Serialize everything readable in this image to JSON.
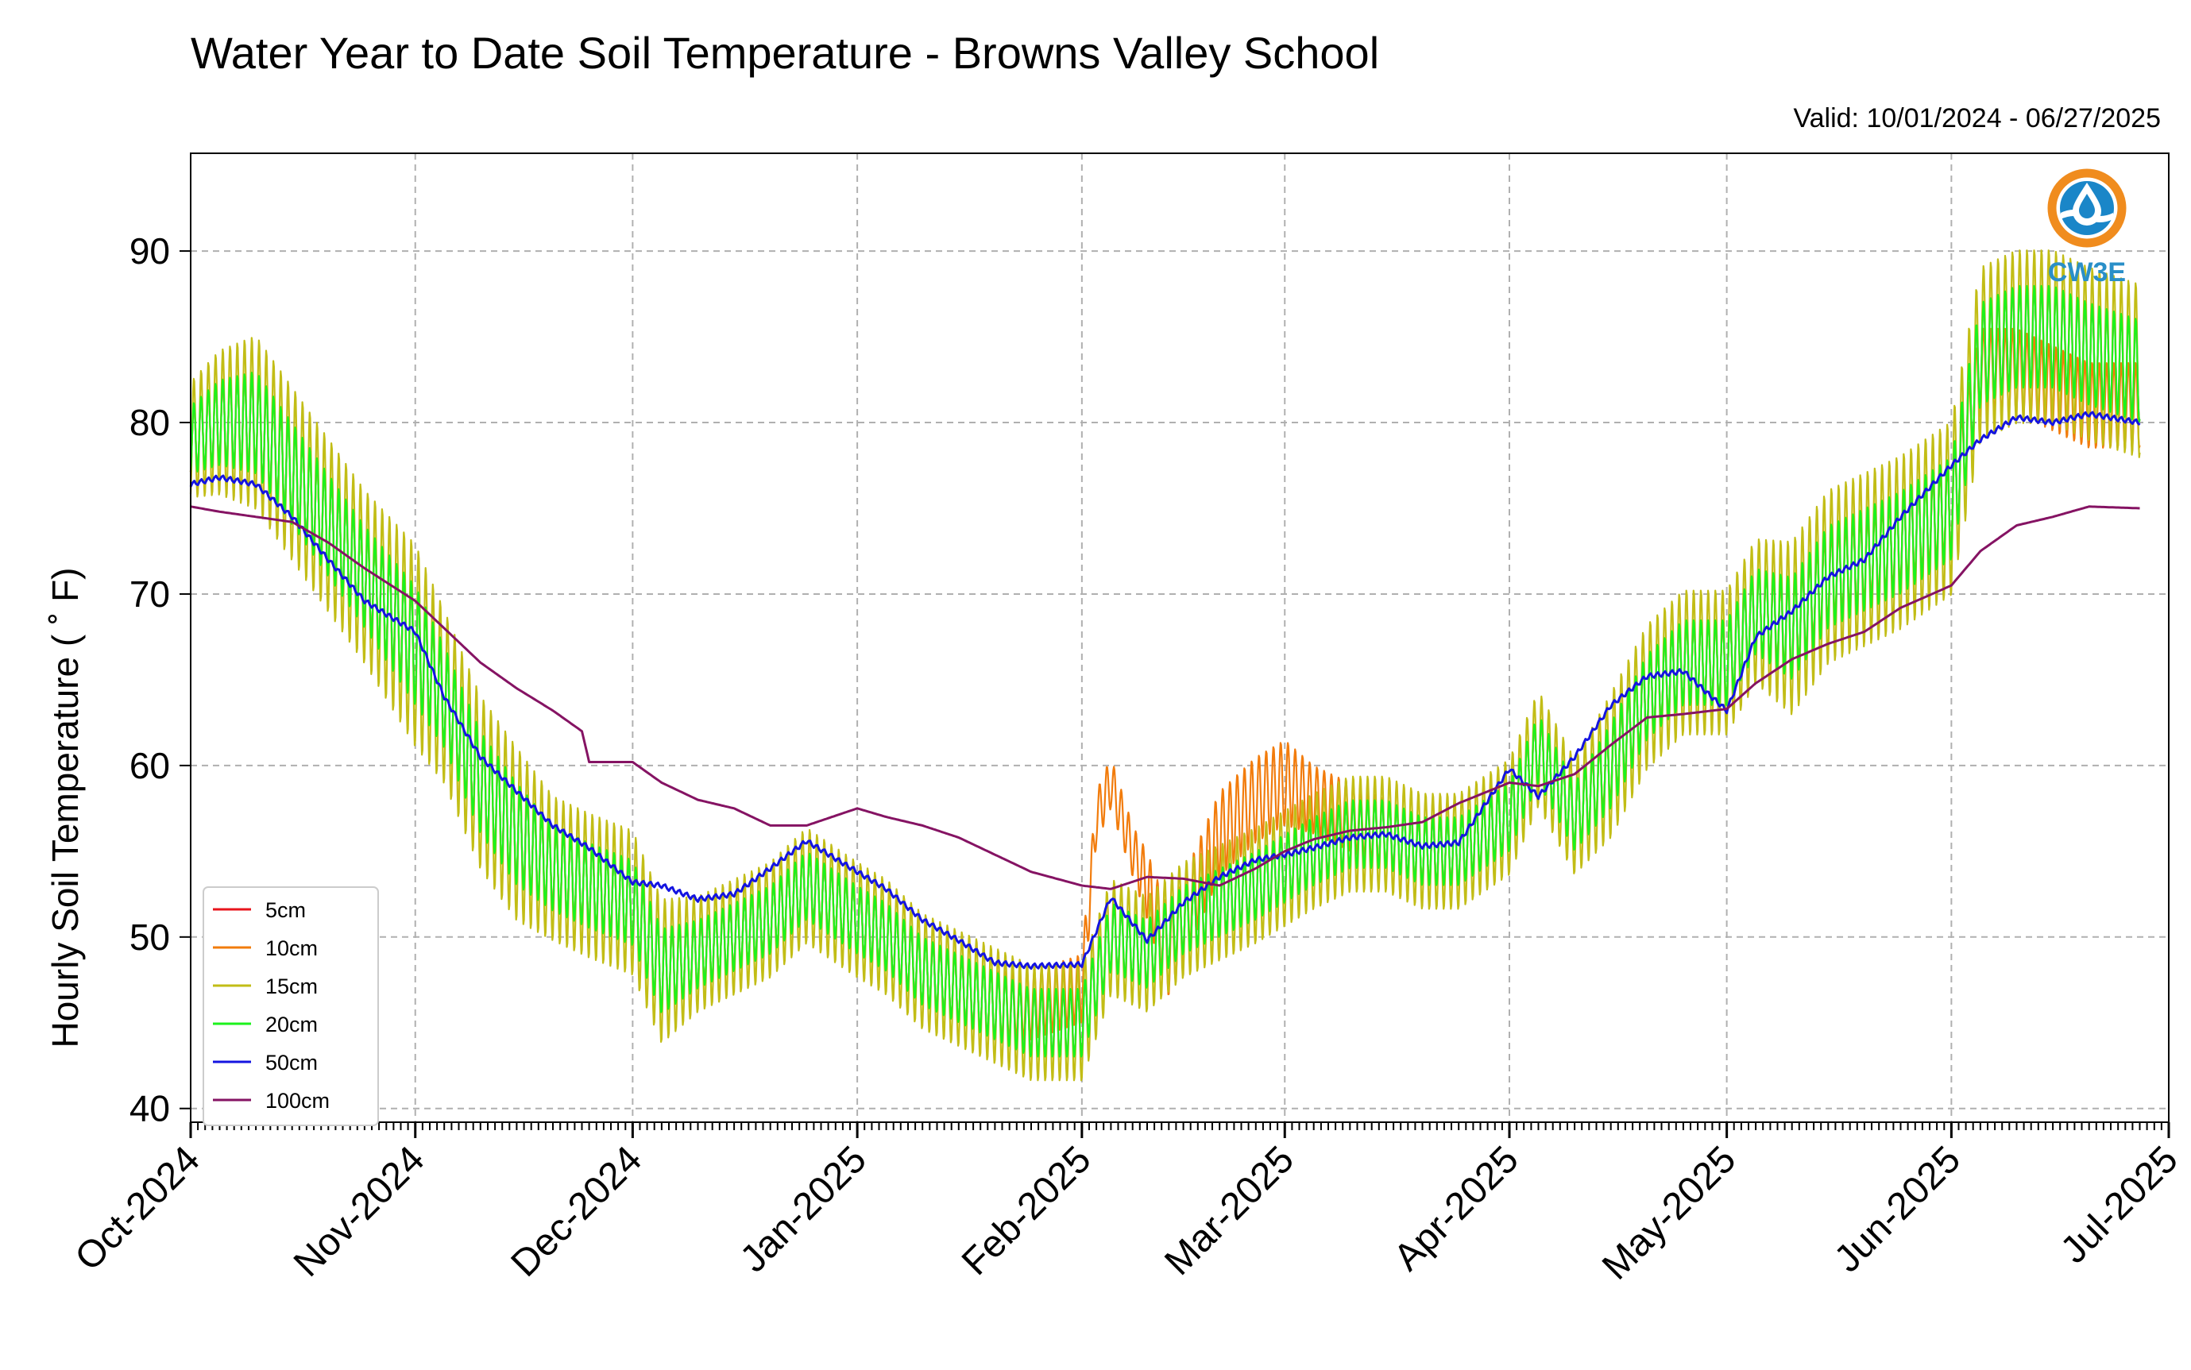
{
  "chart_data": {
    "type": "line",
    "title": "Water Year to Date Soil Temperature - Browns Valley School",
    "subtitle": "Valid: 10/01/2024 - 06/27/2025",
    "xlabel": "",
    "ylabel": "Hourly Soil Temperature ( ˚ F)",
    "xlim": [
      "2024-10-01",
      "2025-07-01"
    ],
    "ylim": [
      39.2,
      95.7
    ],
    "yticks": [
      40,
      50,
      60,
      70,
      80,
      90
    ],
    "xticks": [
      {
        "date": "2024-10-01",
        "label": "Oct-2024"
      },
      {
        "date": "2024-11-01",
        "label": "Nov-2024"
      },
      {
        "date": "2024-12-01",
        "label": "Dec-2024"
      },
      {
        "date": "2025-01-01",
        "label": "Jan-2025"
      },
      {
        "date": "2025-02-01",
        "label": "Feb-2025"
      },
      {
        "date": "2025-03-01",
        "label": "Mar-2025"
      },
      {
        "date": "2025-04-01",
        "label": "Apr-2025"
      },
      {
        "date": "2025-05-01",
        "label": "May-2025"
      },
      {
        "date": "2025-06-01",
        "label": "Jun-2025"
      },
      {
        "date": "2025-07-01",
        "label": "Jul-2025"
      }
    ],
    "grid": true,
    "legend_position": "lower-left",
    "logo_text": "CW3E",
    "series": [
      {
        "name": "5cm",
        "color": "#e8141c",
        "amp_scale": 1.0,
        "x": [
          "2024-10-01",
          "2024-10-05",
          "2024-10-10",
          "2024-10-15",
          "2024-10-20",
          "2024-10-25",
          "2024-11-01",
          "2024-11-05",
          "2024-11-10",
          "2024-11-15",
          "2024-11-20",
          "2024-11-25",
          "2024-12-01",
          "2024-12-05",
          "2024-12-10",
          "2024-12-15",
          "2024-12-20",
          "2024-12-25",
          "2025-01-01",
          "2025-01-05",
          "2025-01-10",
          "2025-01-15",
          "2025-01-20",
          "2025-01-25",
          "2025-02-01",
          "2025-02-05",
          "2025-02-10",
          "2025-02-15",
          "2025-02-20",
          "2025-02-25",
          "2025-03-01",
          "2025-03-05",
          "2025-03-10",
          "2025-03-15",
          "2025-03-20",
          "2025-03-25",
          "2025-04-01",
          "2025-04-05",
          "2025-04-10",
          "2025-04-15",
          "2025-04-20",
          "2025-04-25",
          "2025-05-01",
          "2025-05-05",
          "2025-05-10",
          "2025-05-15",
          "2025-05-20",
          "2025-05-25",
          "2025-06-01",
          "2025-06-05",
          "2025-06-10",
          "2025-06-15",
          "2025-06-20",
          "2025-06-27"
        ],
        "y": [
          79,
          80,
          80,
          77,
          74,
          71,
          67,
          64,
          59,
          56,
          54,
          53,
          52,
          48,
          49,
          50,
          51,
          53,
          51,
          50,
          48,
          47,
          46,
          45,
          45,
          50,
          49,
          51,
          52,
          53,
          54,
          55,
          56,
          56,
          55,
          55,
          57,
          61,
          57,
          60,
          64,
          66,
          66,
          69,
          68,
          71,
          72,
          73,
          75,
          84,
          85,
          85,
          84,
          83
        ],
        "amp": [
          2,
          2.5,
          3,
          3,
          3,
          3,
          3.5,
          3,
          3,
          3,
          2.5,
          2.5,
          2.5,
          2.5,
          2,
          2,
          2,
          2,
          2,
          2,
          2,
          2,
          2,
          2,
          2,
          2,
          2,
          2,
          2,
          2,
          2,
          2,
          2,
          2,
          2,
          2,
          2,
          2,
          2,
          2.5,
          2.5,
          2.5,
          2.5,
          2.5,
          3,
          3,
          3,
          3,
          3,
          3,
          3,
          3,
          3,
          3
        ]
      },
      {
        "name": "10cm",
        "color": "#f27c0c",
        "amp_scale": 1.0,
        "x": [
          "2024-10-01",
          "2024-10-05",
          "2024-10-10",
          "2024-10-15",
          "2024-10-20",
          "2024-10-25",
          "2024-11-01",
          "2024-11-05",
          "2024-11-10",
          "2024-11-15",
          "2024-11-20",
          "2024-11-25",
          "2024-12-01",
          "2024-12-05",
          "2024-12-10",
          "2024-12-15",
          "2024-12-20",
          "2024-12-25",
          "2025-01-01",
          "2025-01-05",
          "2025-01-10",
          "2025-01-15",
          "2025-01-20",
          "2025-01-25",
          "2025-02-01",
          "2025-02-03",
          "2025-02-05",
          "2025-02-08",
          "2025-02-10",
          "2025-02-13",
          "2025-02-15",
          "2025-02-20",
          "2025-02-25",
          "2025-03-01",
          "2025-03-05",
          "2025-03-10",
          "2025-03-15",
          "2025-03-20",
          "2025-03-25",
          "2025-04-01",
          "2025-04-05",
          "2025-04-10",
          "2025-04-15",
          "2025-04-20",
          "2025-04-25",
          "2025-05-01",
          "2025-05-05",
          "2025-05-10",
          "2025-05-15",
          "2025-05-20",
          "2025-05-25",
          "2025-06-01",
          "2025-06-05",
          "2025-06-10",
          "2025-06-15",
          "2025-06-20",
          "2025-06-27"
        ],
        "y": [
          79,
          80,
          80,
          77,
          74,
          71,
          67,
          64,
          59,
          56,
          54,
          53,
          52,
          48,
          49,
          50,
          51,
          53,
          51,
          50,
          48,
          47,
          46,
          46,
          47,
          57,
          59,
          55,
          53,
          49,
          51,
          56,
          58,
          59,
          58,
          57,
          56,
          55,
          55,
          57,
          61,
          57,
          60,
          64,
          66,
          66,
          69,
          68,
          71,
          72,
          73,
          75,
          83,
          83,
          82,
          81,
          81
        ],
        "amp": [
          2,
          2.5,
          3,
          3,
          3,
          3,
          3.5,
          3,
          3,
          3,
          2.5,
          2.5,
          2.5,
          2.5,
          2,
          2,
          2,
          2,
          2,
          2,
          2,
          2,
          2,
          2,
          2,
          1.5,
          1.5,
          1.5,
          2,
          2.5,
          2.5,
          2.5,
          2.5,
          2.5,
          2,
          2,
          2,
          2,
          2,
          2,
          2,
          2,
          2,
          2.5,
          2.5,
          2.5,
          2.5,
          2.5,
          2.5,
          2.5,
          2.5,
          2.5,
          2.5,
          2.5,
          2.5,
          2.5,
          2.5
        ]
      },
      {
        "name": "15cm",
        "color": "#c2bd16",
        "amp_scale": 1.7,
        "x": [
          "2024-10-01",
          "2024-10-05",
          "2024-10-10",
          "2024-10-15",
          "2024-10-20",
          "2024-10-25",
          "2024-11-01",
          "2024-11-05",
          "2024-11-10",
          "2024-11-15",
          "2024-11-20",
          "2024-11-25",
          "2024-12-01",
          "2024-12-05",
          "2024-12-10",
          "2024-12-15",
          "2024-12-20",
          "2024-12-25",
          "2025-01-01",
          "2025-01-05",
          "2025-01-10",
          "2025-01-15",
          "2025-01-20",
          "2025-01-25",
          "2025-02-01",
          "2025-02-05",
          "2025-02-10",
          "2025-02-15",
          "2025-02-20",
          "2025-02-25",
          "2025-03-01",
          "2025-03-05",
          "2025-03-10",
          "2025-03-15",
          "2025-03-20",
          "2025-03-25",
          "2025-04-01",
          "2025-04-05",
          "2025-04-10",
          "2025-04-15",
          "2025-04-20",
          "2025-04-25",
          "2025-05-01",
          "2025-05-05",
          "2025-05-10",
          "2025-05-15",
          "2025-05-20",
          "2025-05-25",
          "2025-06-01",
          "2025-06-05",
          "2025-06-10",
          "2025-06-15",
          "2025-06-20",
          "2025-06-27"
        ],
        "y": [
          79,
          80,
          80,
          77,
          74,
          71,
          67,
          64,
          59,
          56,
          54,
          53,
          52,
          48,
          49,
          50,
          51,
          53,
          51,
          50,
          48,
          47,
          46,
          45,
          45,
          50,
          49,
          51,
          52,
          53,
          54,
          55,
          56,
          56,
          55,
          55,
          57,
          61,
          57,
          60,
          64,
          66,
          66,
          69,
          68,
          71,
          72,
          73,
          75,
          84,
          85,
          85,
          84,
          83
        ],
        "amp": [
          2,
          2.5,
          3,
          3,
          3,
          3,
          3.5,
          3,
          3,
          3,
          2.5,
          2.5,
          2.5,
          2.5,
          2,
          2,
          2,
          2,
          2,
          2,
          2,
          2,
          2,
          2,
          2,
          2,
          2,
          2,
          2,
          2,
          2,
          2,
          2,
          2,
          2,
          2,
          2,
          2,
          2,
          2.5,
          2.5,
          2.5,
          2.5,
          2.5,
          3,
          3,
          3,
          3,
          3,
          3,
          3,
          3,
          3,
          3
        ]
      },
      {
        "name": "20cm",
        "color": "#1cf21c",
        "amp_scale": 1.0,
        "x": [
          "2024-10-01",
          "2024-10-05",
          "2024-10-10",
          "2024-10-15",
          "2024-10-20",
          "2024-10-25",
          "2024-11-01",
          "2024-11-05",
          "2024-11-10",
          "2024-11-15",
          "2024-11-20",
          "2024-11-25",
          "2024-12-01",
          "2024-12-05",
          "2024-12-10",
          "2024-12-15",
          "2024-12-20",
          "2024-12-25",
          "2025-01-01",
          "2025-01-05",
          "2025-01-10",
          "2025-01-15",
          "2025-01-20",
          "2025-01-25",
          "2025-02-01",
          "2025-02-05",
          "2025-02-10",
          "2025-02-15",
          "2025-02-20",
          "2025-02-25",
          "2025-03-01",
          "2025-03-05",
          "2025-03-10",
          "2025-03-15",
          "2025-03-20",
          "2025-03-25",
          "2025-04-01",
          "2025-04-05",
          "2025-04-10",
          "2025-04-15",
          "2025-04-20",
          "2025-04-25",
          "2025-05-01",
          "2025-05-05",
          "2025-05-10",
          "2025-05-15",
          "2025-05-20",
          "2025-05-25",
          "2025-06-01",
          "2025-06-05",
          "2025-06-10",
          "2025-06-15",
          "2025-06-20",
          "2025-06-27"
        ],
        "y": [
          79,
          80,
          80,
          77,
          74,
          71,
          67,
          64,
          59,
          56,
          54,
          53,
          52,
          48,
          49,
          50,
          51,
          53,
          51,
          50,
          48,
          47,
          46,
          45,
          45,
          50,
          49,
          51,
          52,
          53,
          54,
          55,
          56,
          56,
          55,
          55,
          57,
          61,
          57,
          60,
          64,
          66,
          66,
          69,
          68,
          71,
          72,
          73,
          75,
          84,
          85,
          85,
          84,
          83
        ],
        "amp": [
          2,
          2.5,
          3,
          3,
          3,
          3,
          3.5,
          3,
          3,
          3,
          2.5,
          2.5,
          2.5,
          2.5,
          2,
          2,
          2,
          2,
          2,
          2,
          2,
          2,
          2,
          2,
          2,
          2,
          2,
          2,
          2,
          2,
          2,
          2,
          2,
          2,
          2,
          2,
          2,
          2,
          2,
          2.5,
          2.5,
          2.5,
          2.5,
          2.5,
          3,
          3,
          3,
          3,
          3,
          3,
          3,
          3,
          3,
          3
        ]
      },
      {
        "name": "50cm",
        "color": "#1414e0",
        "amp_scale": 0.15,
        "x": [
          "2024-10-01",
          "2024-10-05",
          "2024-10-10",
          "2024-10-15",
          "2024-10-20",
          "2024-10-25",
          "2024-11-01",
          "2024-11-05",
          "2024-11-10",
          "2024-11-15",
          "2024-11-20",
          "2024-11-25",
          "2024-12-01",
          "2024-12-05",
          "2024-12-10",
          "2024-12-15",
          "2024-12-20",
          "2024-12-25",
          "2025-01-01",
          "2025-01-05",
          "2025-01-10",
          "2025-01-15",
          "2025-01-20",
          "2025-01-25",
          "2025-02-01",
          "2025-02-05",
          "2025-02-10",
          "2025-02-15",
          "2025-02-20",
          "2025-02-25",
          "2025-03-01",
          "2025-03-05",
          "2025-03-10",
          "2025-03-15",
          "2025-03-20",
          "2025-03-25",
          "2025-04-01",
          "2025-04-05",
          "2025-04-10",
          "2025-04-15",
          "2025-04-20",
          "2025-04-25",
          "2025-05-01",
          "2025-05-05",
          "2025-05-10",
          "2025-05-15",
          "2025-05-20",
          "2025-05-25",
          "2025-06-01",
          "2025-06-05",
          "2025-06-10",
          "2025-06-15",
          "2025-06-20",
          "2025-06-27"
        ],
        "y": [
          76.4,
          76.8,
          76.4,
          74.5,
          72,
          69.6,
          67.8,
          64,
          60.5,
          58.5,
          56.5,
          55.2,
          53.2,
          53.0,
          52.2,
          52.5,
          54,
          55.6,
          53.8,
          52.8,
          51,
          49.8,
          48.5,
          48.3,
          48.4,
          52.3,
          49.8,
          52,
          53.5,
          54.5,
          54.8,
          55.2,
          55.8,
          56,
          55.3,
          55.5,
          59.8,
          58.2,
          60.5,
          63.5,
          65.2,
          65.5,
          63.2,
          67.5,
          69,
          71,
          72,
          74.5,
          77.5,
          79,
          80.3,
          80,
          80.5,
          80
        ],
        "amp": [
          1,
          1,
          1,
          1,
          1,
          1,
          1,
          1,
          1,
          1,
          1,
          1,
          1,
          1,
          1,
          1,
          1,
          1,
          1,
          1,
          1,
          1,
          1,
          1,
          1,
          1,
          1,
          1,
          1,
          1,
          1,
          1,
          1,
          1,
          1,
          1,
          1,
          1,
          1,
          1,
          1,
          1,
          1,
          1,
          1,
          1,
          1,
          1,
          1,
          1,
          1,
          1,
          1,
          1
        ]
      },
      {
        "name": "100cm",
        "color": "#851363",
        "amp_scale": 0.0,
        "x": [
          "2024-10-01",
          "2024-10-05",
          "2024-10-10",
          "2024-10-15",
          "2024-10-20",
          "2024-10-25",
          "2024-11-01",
          "2024-11-05",
          "2024-11-10",
          "2024-11-15",
          "2024-11-20",
          "2024-11-24",
          "2024-11-25",
          "2024-12-01",
          "2024-12-05",
          "2024-12-10",
          "2024-12-15",
          "2024-12-20",
          "2024-12-25",
          "2025-01-01",
          "2025-01-05",
          "2025-01-10",
          "2025-01-15",
          "2025-01-20",
          "2025-01-25",
          "2025-02-01",
          "2025-02-05",
          "2025-02-10",
          "2025-02-15",
          "2025-02-20",
          "2025-02-25",
          "2025-03-01",
          "2025-03-05",
          "2025-03-10",
          "2025-03-15",
          "2025-03-20",
          "2025-03-25",
          "2025-04-01",
          "2025-04-05",
          "2025-04-10",
          "2025-04-15",
          "2025-04-20",
          "2025-04-25",
          "2025-05-01",
          "2025-05-05",
          "2025-05-10",
          "2025-05-15",
          "2025-05-20",
          "2025-05-25",
          "2025-06-01",
          "2025-06-05",
          "2025-06-10",
          "2025-06-15",
          "2025-06-20",
          "2025-06-27"
        ],
        "y": [
          75.1,
          74.8,
          74.5,
          74.2,
          73,
          71.5,
          69.6,
          68,
          66,
          64.5,
          63.2,
          62,
          60.2,
          60.2,
          59,
          58,
          57.5,
          56.5,
          56.5,
          57.5,
          57,
          56.5,
          55.8,
          54.8,
          53.8,
          53,
          52.8,
          53.5,
          53.4,
          53,
          54,
          55,
          55.7,
          56.2,
          56.4,
          56.7,
          57.8,
          59,
          58.8,
          59.5,
          61.2,
          62.8,
          63,
          63.3,
          64.8,
          66.2,
          67.1,
          67.8,
          69.2,
          70.5,
          72.5,
          74,
          74.5,
          75.1,
          75
        ]
      }
    ]
  }
}
